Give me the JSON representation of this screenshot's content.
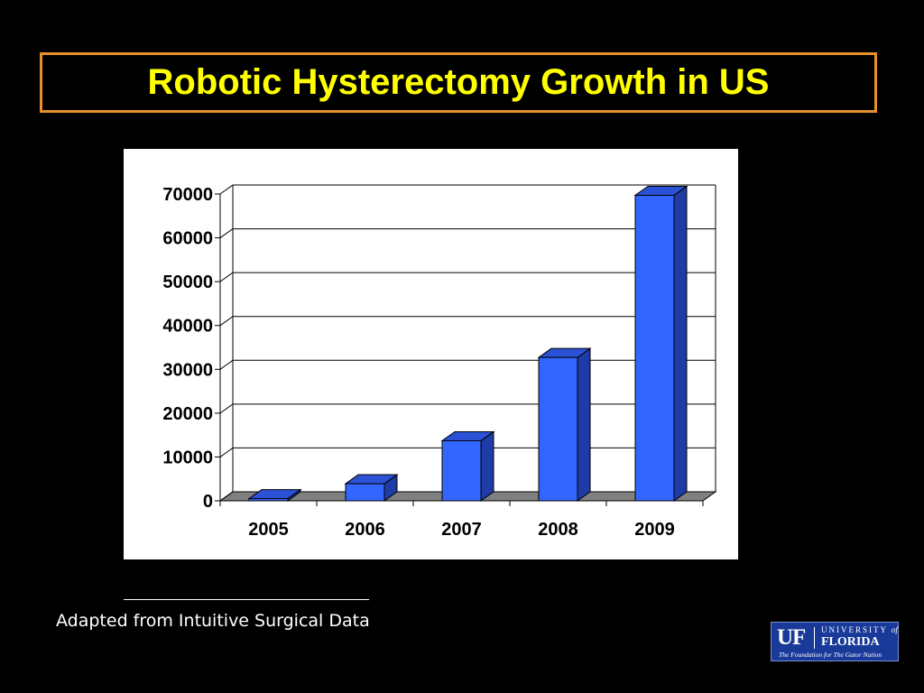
{
  "slide": {
    "title": "Robotic Hysterectomy Growth in US",
    "rule": "____________________",
    "source": "Adapted from Intuitive Surgical Data"
  },
  "colors": {
    "background": "#000000",
    "title_text": "#FFFF00",
    "title_border": "#E8902A",
    "bar_front": "#3366FF",
    "bar_side": "#1F3BA6",
    "bar_top": "#2B52D6",
    "floor": "#808080"
  },
  "logo": {
    "uf": "UF",
    "university": "UNIVERSITY",
    "of": "of",
    "florida": "FLORIDA",
    "tagline": "The Foundation for The Gator Nation"
  },
  "chart_data": {
    "type": "bar",
    "categories": [
      "2005",
      "2006",
      "2007",
      "2008",
      "2009"
    ],
    "values": [
      500,
      3900,
      13700,
      32700,
      69700
    ],
    "ylim": [
      0,
      70000
    ],
    "yticks": [
      0,
      10000,
      20000,
      30000,
      40000,
      50000,
      60000,
      70000
    ],
    "title": "",
    "xlabel": "",
    "ylabel": "",
    "grid": true,
    "style": "3d-column",
    "legend": "none"
  }
}
